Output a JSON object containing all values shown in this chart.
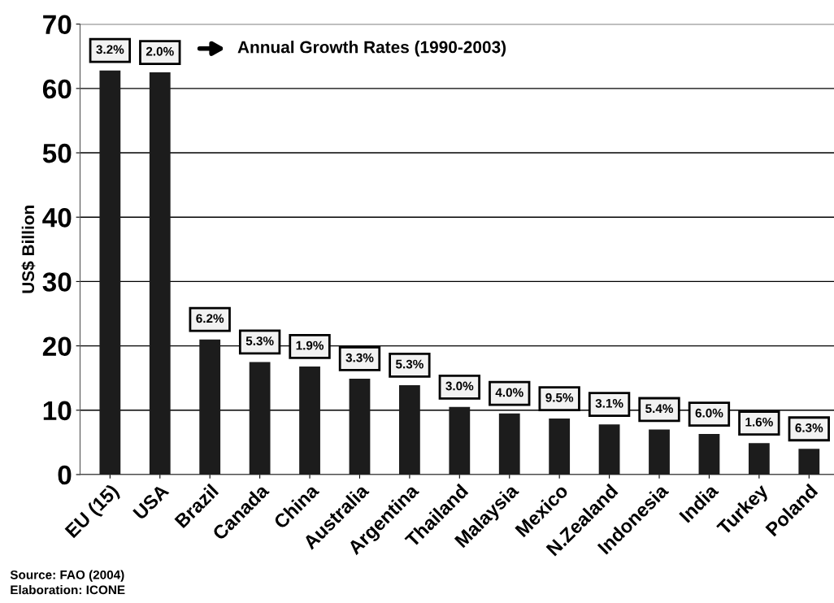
{
  "chart_data": {
    "type": "bar",
    "ylabel": "US$ Billion",
    "categories": [
      "EU (15)",
      "USA",
      "Brazil",
      "Canada",
      "China",
      "Australia",
      "Argentina",
      "Thailand",
      "Malaysia",
      "Mexico",
      "N.Zealand",
      "Indonesia",
      "India",
      "Turkey",
      "Poland"
    ],
    "values": [
      62.8,
      62.5,
      21,
      17.5,
      16.8,
      14.9,
      13.9,
      10.5,
      9.5,
      8.7,
      7.8,
      7.0,
      6.3,
      4.9,
      4.0
    ],
    "color": "#1c1c1c",
    "ylim": [
      0,
      70
    ],
    "yticks": [
      0,
      10,
      20,
      30,
      40,
      50,
      60,
      70
    ],
    "grid": "y",
    "legend": false,
    "annotations": [
      "Annual Growth Rates (1990-2003)",
      {
        "text": "3.2%",
        "x": "EU (15)",
        "y": 62.8
      },
      {
        "text": "2.0%",
        "x": "USA",
        "y": 62.5
      },
      {
        "text": "6.2%",
        "x": "Brazil",
        "y": 21
      },
      {
        "text": "5.3%",
        "x": "Canada",
        "y": 17.5
      },
      {
        "text": "1.9%",
        "x": "China",
        "y": 16.8
      },
      {
        "text": "3.3%",
        "x": "Australia",
        "y": 14.9
      },
      {
        "text": "5.3%",
        "x": "Argentina",
        "y": 13.9
      },
      {
        "text": "3.0%",
        "x": "Thailand",
        "y": 10.5
      },
      {
        "text": "4.0%",
        "x": "Malaysia",
        "y": 9.5
      },
      {
        "text": "9.5%",
        "x": "Mexico",
        "y": 8.7
      },
      {
        "text": "3.1%",
        "x": "N.Zealand",
        "y": 7.8
      },
      {
        "text": "5.4%",
        "x": "Indonesia",
        "y": 7.0
      },
      {
        "text": "6.0%",
        "x": "India",
        "y": 6.3
      },
      {
        "text": "1.6%",
        "x": "Turkey",
        "y": 4.9
      },
      {
        "text": "6.3%",
        "x": "Poland",
        "y": 4.0
      },
      "Source: FAO (2004)",
      "Elaboration: ICONE"
    ]
  }
}
